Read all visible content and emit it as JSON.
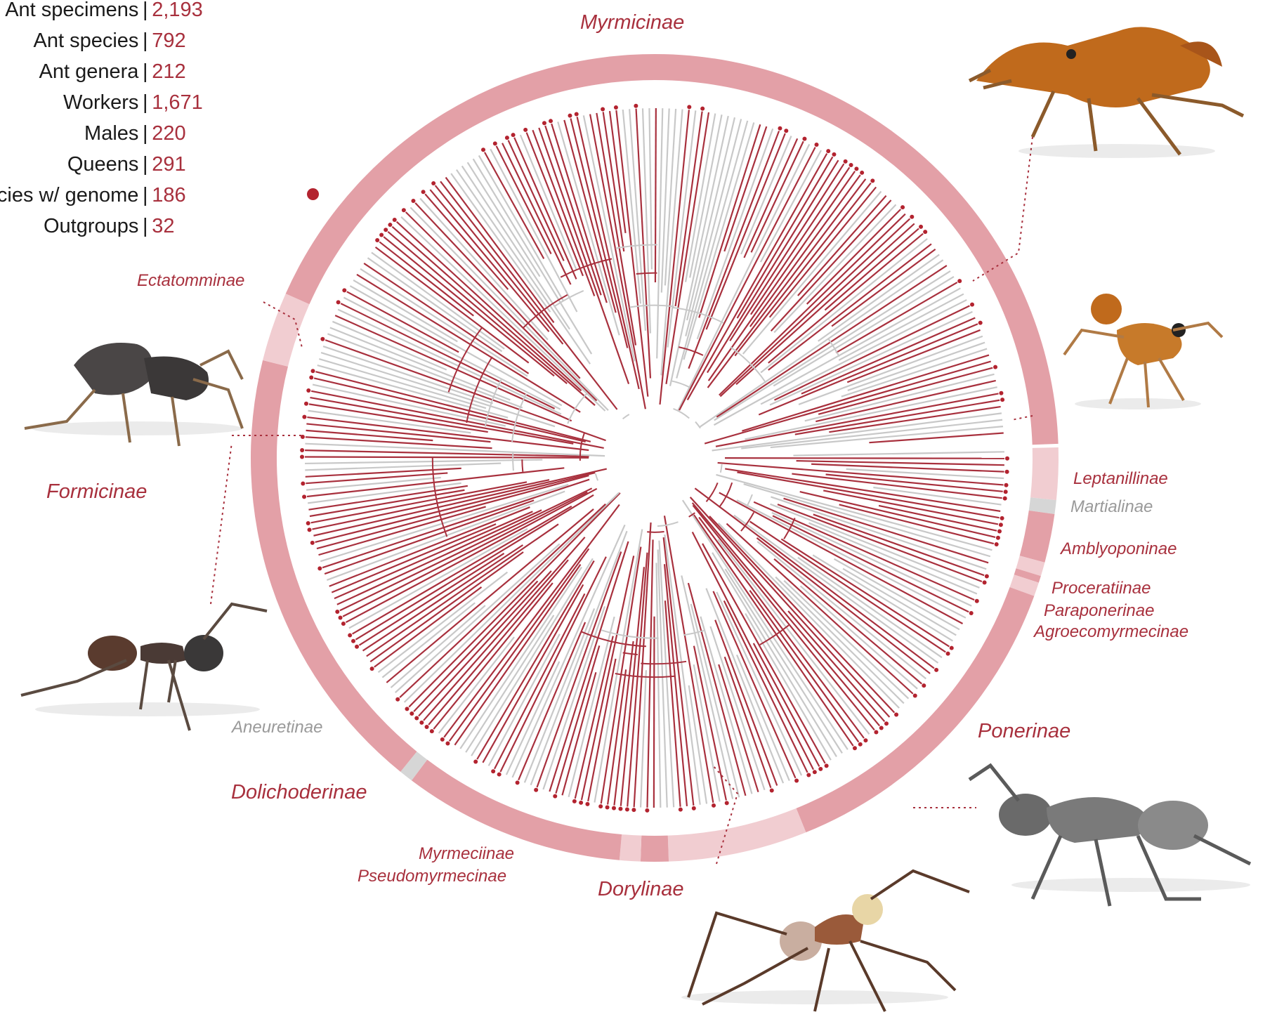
{
  "stats": [
    {
      "label": "Ant specimens",
      "value": "2,193"
    },
    {
      "label": "Ant species",
      "value": "792"
    },
    {
      "label": "Ant genera",
      "value": "212"
    },
    {
      "label": "Workers",
      "value": "1,671"
    },
    {
      "label": "Males",
      "value": "220"
    },
    {
      "label": "Queens",
      "value": "291"
    },
    {
      "label": "Species w/ genome",
      "value": "186"
    },
    {
      "label": "Outgroups",
      "value": "32"
    }
  ],
  "separator": "|",
  "subfamilies": [
    {
      "name": "Myrmicinae",
      "color": "#a8303d"
    },
    {
      "name": "Ectatomminae",
      "color": "#a8303d"
    },
    {
      "name": "Formicinae",
      "color": "#a8303d"
    },
    {
      "name": "Aneuretinae",
      "color": "#9a9a9a"
    },
    {
      "name": "Dolichoderinae",
      "color": "#a8303d"
    },
    {
      "name": "Myrmeciinae",
      "color": "#a8303d"
    },
    {
      "name": "Pseudomyrmecinae",
      "color": "#a8303d"
    },
    {
      "name": "Dorylinae",
      "color": "#a8303d"
    },
    {
      "name": "Ponerinae",
      "color": "#a8303d"
    },
    {
      "name": "Agroecomyrmecinae",
      "color": "#a8303d"
    },
    {
      "name": "Paraponerinae",
      "color": "#a8303d"
    },
    {
      "name": "Proceratiinae",
      "color": "#a8303d"
    },
    {
      "name": "Amblyoponinae",
      "color": "#a8303d"
    },
    {
      "name": "Martialinae",
      "color": "#9a9a9a"
    },
    {
      "name": "Leptanillinae",
      "color": "#a8303d"
    }
  ],
  "colors": {
    "accent": "#a8303d",
    "genome_dot": "#b3232f",
    "branch_genome": "#a8303d",
    "branch_other": "#c8c8c8",
    "ring_dark": "#e3a0a7",
    "ring_light": "#f1cdd1",
    "ring_gray": "#d6d6d6"
  },
  "icons": [
    "ant-specimen-orange-icon",
    "ant-specimen-gray-icon",
    "ant-specimen-small-orange-icon",
    "ant-specimen-brown-icon",
    "ant-specimen-silver-icon",
    "army-ant-specimen-icon"
  ]
}
